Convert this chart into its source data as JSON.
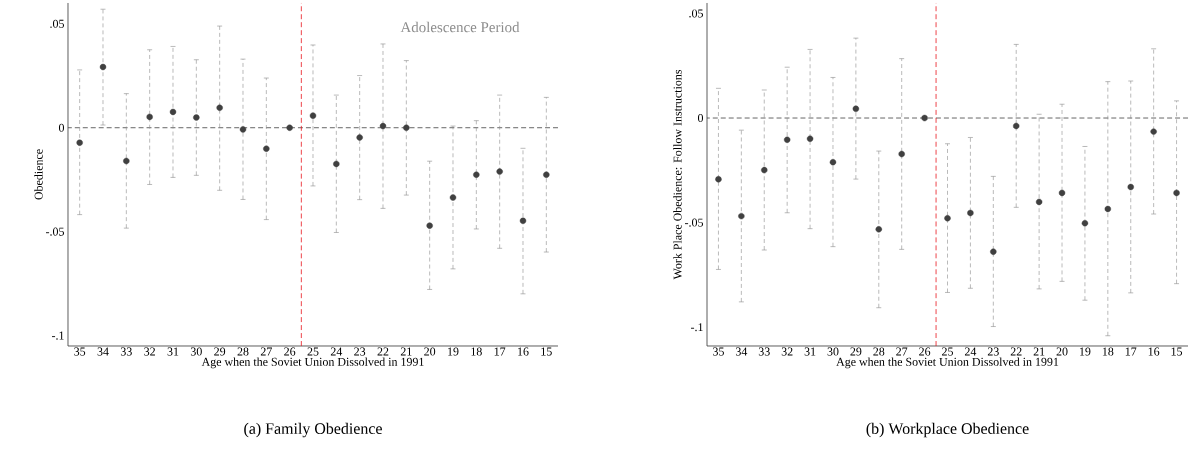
{
  "chart_data": [
    {
      "type": "scatter",
      "xlabel": "Age when the Soviet Union Dissolved in 1991",
      "ylabel": "Obedience",
      "color": "#404040",
      "x": [
        35,
        34,
        33,
        32,
        31,
        30,
        29,
        28,
        27,
        26,
        25,
        24,
        23,
        22,
        21,
        20,
        19,
        18,
        17,
        16,
        15
      ],
      "values": [
        -0.0072,
        0.0292,
        -0.016,
        0.0052,
        0.0076,
        0.0049,
        0.0096,
        -0.0008,
        -0.0101,
        0,
        0.0058,
        -0.0174,
        -0.0047,
        0.0008,
        0.0,
        -0.0471,
        -0.0336,
        -0.0226,
        -0.0211,
        -0.0448,
        -0.0226
      ],
      "errors": [
        [
          -0.0418,
          0.0278
        ],
        [
          0.0013,
          0.057
        ],
        [
          -0.0483,
          0.0164
        ],
        [
          -0.0273,
          0.0375
        ],
        [
          -0.0239,
          0.0391
        ],
        [
          -0.0229,
          0.0327
        ],
        [
          -0.0301,
          0.0489
        ],
        [
          -0.0345,
          0.033
        ],
        [
          -0.0442,
          0.0239
        ],
        null,
        [
          -0.028,
          0.0398
        ],
        [
          -0.0504,
          0.0157
        ],
        [
          -0.0346,
          0.0251
        ],
        [
          -0.0388,
          0.0403
        ],
        [
          -0.0324,
          0.0323
        ],
        [
          -0.0778,
          -0.0161
        ],
        [
          -0.0679,
          0.0008
        ],
        [
          -0.0487,
          0.0034
        ],
        [
          -0.058,
          0.0157
        ],
        [
          -0.0799,
          -0.0099
        ],
        [
          -0.0598,
          0.0146
        ]
      ],
      "xlim": [
        35.5,
        14.5
      ],
      "ylim": [
        -0.105,
        0.06
      ],
      "xticks": [
        35,
        34,
        33,
        32,
        31,
        30,
        29,
        28,
        27,
        26,
        25,
        24,
        23,
        22,
        21,
        20,
        19,
        18,
        17,
        16,
        15
      ],
      "yticks": [
        {
          "value": 0.05,
          "label": ".05"
        },
        0,
        {
          "value": -0.05,
          "label": "-.05"
        },
        {
          "value": -0.1,
          "label": "-.1"
        }
      ],
      "ref_lines": [
        {
          "axis": "y",
          "value": 0,
          "color": "#404040",
          "line_style": "dashed"
        },
        {
          "axis": "x",
          "value": 25.5,
          "color": "#e8141c",
          "line_style": "dashed"
        }
      ],
      "annotations": [
        "Adolescence Period",
        "(a)  Family Obedience"
      ]
    },
    {
      "type": "scatter",
      "xlabel": "Age when the Soviet Union Dissolved in 1991",
      "ylabel": "Work Place Obedience: Follow Instructions",
      "color": "#404040",
      "x": [
        35,
        34,
        33,
        32,
        31,
        30,
        29,
        28,
        27,
        26,
        25,
        24,
        23,
        22,
        21,
        20,
        19,
        18,
        17,
        16,
        15
      ],
      "values": [
        -0.0293,
        -0.0469,
        -0.0249,
        -0.0104,
        -0.0099,
        -0.0211,
        0.0044,
        -0.0532,
        -0.0172,
        0,
        -0.0479,
        -0.0454,
        -0.0639,
        -0.0038,
        -0.0401,
        -0.0358,
        -0.0503,
        -0.0435,
        -0.033,
        -0.0065,
        -0.0358
      ],
      "errors": [
        [
          -0.0724,
          0.0142
        ],
        [
          -0.0879,
          -0.0058
        ],
        [
          -0.0631,
          0.0134
        ],
        [
          -0.0453,
          0.0243
        ],
        [
          -0.0529,
          0.0328
        ],
        [
          -0.0615,
          0.0194
        ],
        [
          -0.0292,
          0.0382
        ],
        [
          -0.0907,
          -0.0158
        ],
        [
          -0.0628,
          0.0284
        ],
        null,
        [
          -0.0834,
          -0.0123
        ],
        [
          -0.0814,
          -0.0093
        ],
        [
          -0.0997,
          -0.0279
        ],
        [
          -0.0427,
          0.0352
        ],
        [
          -0.0817,
          0.0018
        ],
        [
          -0.0781,
          0.0066
        ],
        [
          -0.0871,
          -0.0136
        ],
        [
          -0.1041,
          0.0174
        ],
        [
          -0.0836,
          0.0177
        ],
        [
          -0.0459,
          0.0331
        ],
        [
          -0.0792,
          0.0082
        ]
      ],
      "xlim": [
        35.5,
        14.5
      ],
      "ylim": [
        -0.109,
        0.055
      ],
      "xticks": [
        35,
        34,
        33,
        32,
        31,
        30,
        29,
        28,
        27,
        26,
        25,
        24,
        23,
        22,
        21,
        20,
        19,
        18,
        17,
        16,
        15
      ],
      "yticks": [
        {
          "value": 0.05,
          "label": ".05"
        },
        0,
        {
          "value": -0.05,
          "label": "-.05"
        },
        {
          "value": -0.1,
          "label": "-.1"
        }
      ],
      "ref_lines": [
        {
          "axis": "y",
          "value": 0,
          "color": "#404040",
          "line_style": "dashed"
        },
        {
          "axis": "x",
          "value": 25.5,
          "color": "#e8141c",
          "line_style": "dashed"
        }
      ],
      "annotations": [
        "(b)  Workplace Obedience"
      ]
    }
  ]
}
